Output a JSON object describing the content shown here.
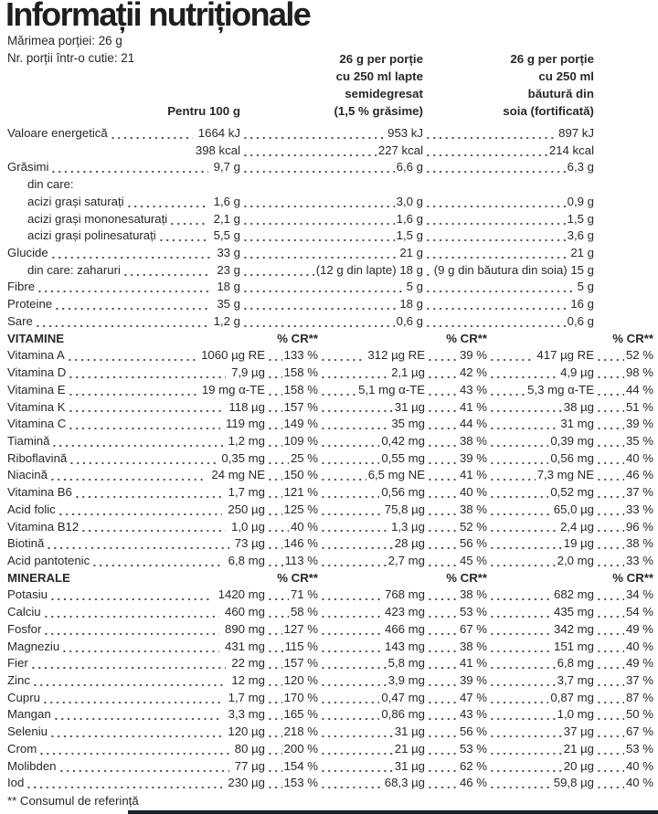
{
  "title": "Informații nutriționale",
  "meta": {
    "serving_size": "Mărimea porției: 26 g",
    "servings_per_box": "Nr. porții într-o cutie: 21"
  },
  "columns": {
    "per100g": "Pentru 100 g",
    "milk": "26 g per porție\ncu 250 ml lapte\nsemidegresat\n(1,5 % grăsime)",
    "soy": "26 g per porție\ncu 250 ml\nbăutură din\nsoia (fortificată)"
  },
  "pct_header": "% CR**",
  "sections": [
    {
      "name": null,
      "type": "macro",
      "rows": [
        {
          "label": "Valoare energetică",
          "v1": "1664 kJ",
          "v2": "953 kJ",
          "v3": "897 kJ"
        },
        {
          "label": "",
          "lead": false,
          "v1": "398 kcal",
          "v2": "227 kcal",
          "v3": "214 kcal"
        },
        {
          "label": "Grăsimi",
          "v1": "9,7 g",
          "v2": "6,6 g",
          "v3": "6,3 g"
        },
        {
          "label": "din care:",
          "indent": 1
        },
        {
          "label": "acizi grași saturați",
          "indent": 1,
          "v1": "1,6 g",
          "v2": "3,0 g",
          "v3": "0,9 g"
        },
        {
          "label": "acizi grași mononesaturați",
          "indent": 1,
          "v1": "2,1 g",
          "v2": "1,6 g",
          "v3": "1,5 g"
        },
        {
          "label": "acizi grași polinesaturați",
          "indent": 1,
          "v1": "5,5 g",
          "v2": "1,5 g",
          "v3": "3,6 g"
        },
        {
          "label": "Glucide",
          "v1": "33 g",
          "v2": "21 g",
          "v3": "21 g"
        },
        {
          "label": "din care: zaharuri",
          "indent": 1,
          "v1": "23 g",
          "v2": "(12 g din lapte) 18 g",
          "v3": "(9 g din băutura din soia) 15 g"
        },
        {
          "label": "Fibre",
          "v1": "18 g",
          "v2": "5 g",
          "v3": "5 g"
        },
        {
          "label": "Proteine",
          "v1": "35 g",
          "v2": "18 g",
          "v3": "16 g"
        },
        {
          "label": "Sare",
          "v1": "1,2 g",
          "v2": "0,6 g",
          "v3": "0,6 g"
        }
      ]
    },
    {
      "name": "VITAMINE",
      "type": "detail",
      "rows": [
        {
          "label": "Vitamina A",
          "v1": "1060 µg RE",
          "p1": "133 %",
          "v2": "312 µg RE",
          "p2": "39 %",
          "v3": "417 µg RE",
          "p3": "52 %"
        },
        {
          "label": "Vitamina D",
          "v1": "7,9 µg",
          "p1": "158 %",
          "v2": "2,1 µg",
          "p2": "42 %",
          "v3": "4,9 µg",
          "p3": "98 %"
        },
        {
          "label": "Vitamina E",
          "v1": "19 mg α-TE",
          "p1": "158 %",
          "v2": "5,1 mg α-TE",
          "p2": "43 %",
          "v3": "5,3 mg α-TE",
          "p3": "44 %"
        },
        {
          "label": "Vitamina K",
          "v1": "118 µg",
          "p1": "157 %",
          "v2": "31 µg",
          "p2": "41 %",
          "v3": "38 µg",
          "p3": "51 %"
        },
        {
          "label": "Vitamina C",
          "v1": "119 mg",
          "p1": "149 %",
          "v2": "35 mg",
          "p2": "44 %",
          "v3": "31 mg",
          "p3": "39 %"
        },
        {
          "label": "Tiamină",
          "v1": "1,2 mg",
          "p1": "109 %",
          "v2": "0,42 mg",
          "p2": "38 %",
          "v3": "0,39 mg",
          "p3": "35 %"
        },
        {
          "label": "Riboflavină",
          "v1": "0,35 mg",
          "p1": "25 %",
          "v2": "0,55 mg",
          "p2": "39 %",
          "v3": "0,56 mg",
          "p3": "40 %"
        },
        {
          "label": "Niacină",
          "v1": "24 mg NE",
          "p1": "150 %",
          "v2": "6,5 mg NE",
          "p2": "41 %",
          "v3": "7,3 mg NE",
          "p3": "46 %"
        },
        {
          "label": "Vitamina B6",
          "v1": "1,7 mg",
          "p1": "121 %",
          "v2": "0,56 mg",
          "p2": "40 %",
          "v3": "0,52 mg",
          "p3": "37 %"
        },
        {
          "label": "Acid folic",
          "v1": "250 µg",
          "p1": "125 %",
          "v2": "75,8 µg",
          "p2": "38 %",
          "v3": "65,0 µg",
          "p3": "33 %"
        },
        {
          "label": "Vitamina B12",
          "v1": "1,0 µg",
          "p1": "40 %",
          "v2": "1,3 µg",
          "p2": "52 %",
          "v3": "2,4 µg",
          "p3": "96 %"
        },
        {
          "label": "Biotină",
          "v1": "73 µg",
          "p1": "146 %",
          "v2": "28 µg",
          "p2": "56 %",
          "v3": "19 µg",
          "p3": "38 %"
        },
        {
          "label": "Acid pantotenic",
          "v1": "6,8 mg",
          "p1": "113 %",
          "v2": "2,7 mg",
          "p2": "45 %",
          "v3": "2,0 mg",
          "p3": "33 %"
        }
      ]
    },
    {
      "name": "MINERALE",
      "type": "detail",
      "rows": [
        {
          "label": "Potasiu",
          "v1": "1420 mg",
          "p1": "71 %",
          "v2": "768 mg",
          "p2": "38 %",
          "v3": "682 mg",
          "p3": "34 %"
        },
        {
          "label": "Calciu",
          "v1": "460 mg",
          "p1": "58 %",
          "v2": "423 mg",
          "p2": "53 %",
          "v3": "435 mg",
          "p3": "54 %"
        },
        {
          "label": "Fosfor",
          "v1": "890 mg",
          "p1": "127 %",
          "v2": "466 mg",
          "p2": "67 %",
          "v3": "342 mg",
          "p3": "49 %"
        },
        {
          "label": "Magneziu",
          "v1": "431 mg",
          "p1": "115 %",
          "v2": "143 mg",
          "p2": "38 %",
          "v3": "151 mg",
          "p3": "40 %"
        },
        {
          "label": "Fier",
          "v1": "22 mg",
          "p1": "157 %",
          "v2": "5,8 mg",
          "p2": "41 %",
          "v3": "6,8 mg",
          "p3": "49 %"
        },
        {
          "label": "Zinc",
          "v1": "12 mg",
          "p1": "120 %",
          "v2": "3,9 mg",
          "p2": "39 %",
          "v3": "3,7 mg",
          "p3": "37 %"
        },
        {
          "label": "Cupru",
          "v1": "1,7 mg",
          "p1": "170 %",
          "v2": "0,47 mg",
          "p2": "47 %",
          "v3": "0,87 mg",
          "p3": "87 %"
        },
        {
          "label": "Mangan",
          "v1": "3,3 mg",
          "p1": "165 %",
          "v2": "0,86 mg",
          "p2": "43 %",
          "v3": "1,0 mg",
          "p3": "50 %"
        },
        {
          "label": "Seleniu",
          "v1": "120 µg",
          "p1": "218 %",
          "v2": "31 µg",
          "p2": "56 %",
          "v3": "37 µg",
          "p3": "67 %"
        },
        {
          "label": "Crom",
          "v1": "80 µg",
          "p1": "200 %",
          "v2": "21 µg",
          "p2": "53 %",
          "v3": "21 µg",
          "p3": "53 %"
        },
        {
          "label": "Molibden",
          "v1": "77 µg",
          "p1": "154 %",
          "v2": "31 µg",
          "p2": "62 %",
          "v3": "20 µg",
          "p3": "40 %"
        },
        {
          "label": "Iod",
          "v1": "230 µg",
          "p1": "153 %",
          "v2": "68,3 µg",
          "p2": "46 %",
          "v3": "59,8 µg",
          "p3": "40 %"
        }
      ]
    }
  ],
  "footnote": "** Consumul de referință",
  "colors": {
    "text": "#26282b",
    "bottom_bar": "#1c2026"
  }
}
